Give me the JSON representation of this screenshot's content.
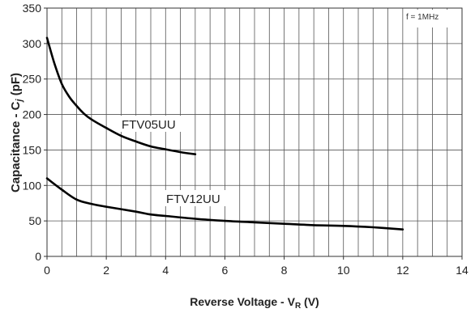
{
  "chart_data": {
    "type": "line",
    "xlabel": "Reverse Voltage - V",
    "xlabel_sub": "R",
    "xlabel_unit": " (V)",
    "ylabel": "Capacitance - C",
    "ylabel_sub": "j",
    "ylabel_unit": " (pF)",
    "annotation": "f = 1MHz",
    "xlim": [
      0,
      14
    ],
    "ylim": [
      0,
      350
    ],
    "x_ticks": [
      0,
      2,
      4,
      6,
      8,
      10,
      12,
      14
    ],
    "y_ticks": [
      0,
      50,
      100,
      150,
      200,
      250,
      300,
      350
    ],
    "grid": true,
    "series": [
      {
        "name": "FTV05UU",
        "color": "#000000",
        "x": [
          0,
          0.25,
          0.5,
          0.75,
          1.0,
          1.25,
          1.5,
          2.0,
          2.5,
          3.0,
          3.5,
          4.0,
          4.5,
          5.0
        ],
        "y": [
          308,
          272,
          243,
          225,
          212,
          201,
          193,
          181,
          170,
          162,
          155,
          151,
          147,
          144
        ]
      },
      {
        "name": "FTV12UU",
        "color": "#000000",
        "x": [
          0,
          0.5,
          1.0,
          1.5,
          2.0,
          3.0,
          3.5,
          4.0,
          5.0,
          6.0,
          7.0,
          8.0,
          9.0,
          10.0,
          11.0,
          12.0
        ],
        "y": [
          110,
          94,
          80,
          74,
          70,
          63,
          59,
          57,
          53,
          50,
          48,
          46,
          44,
          43,
          41,
          38
        ]
      }
    ]
  }
}
